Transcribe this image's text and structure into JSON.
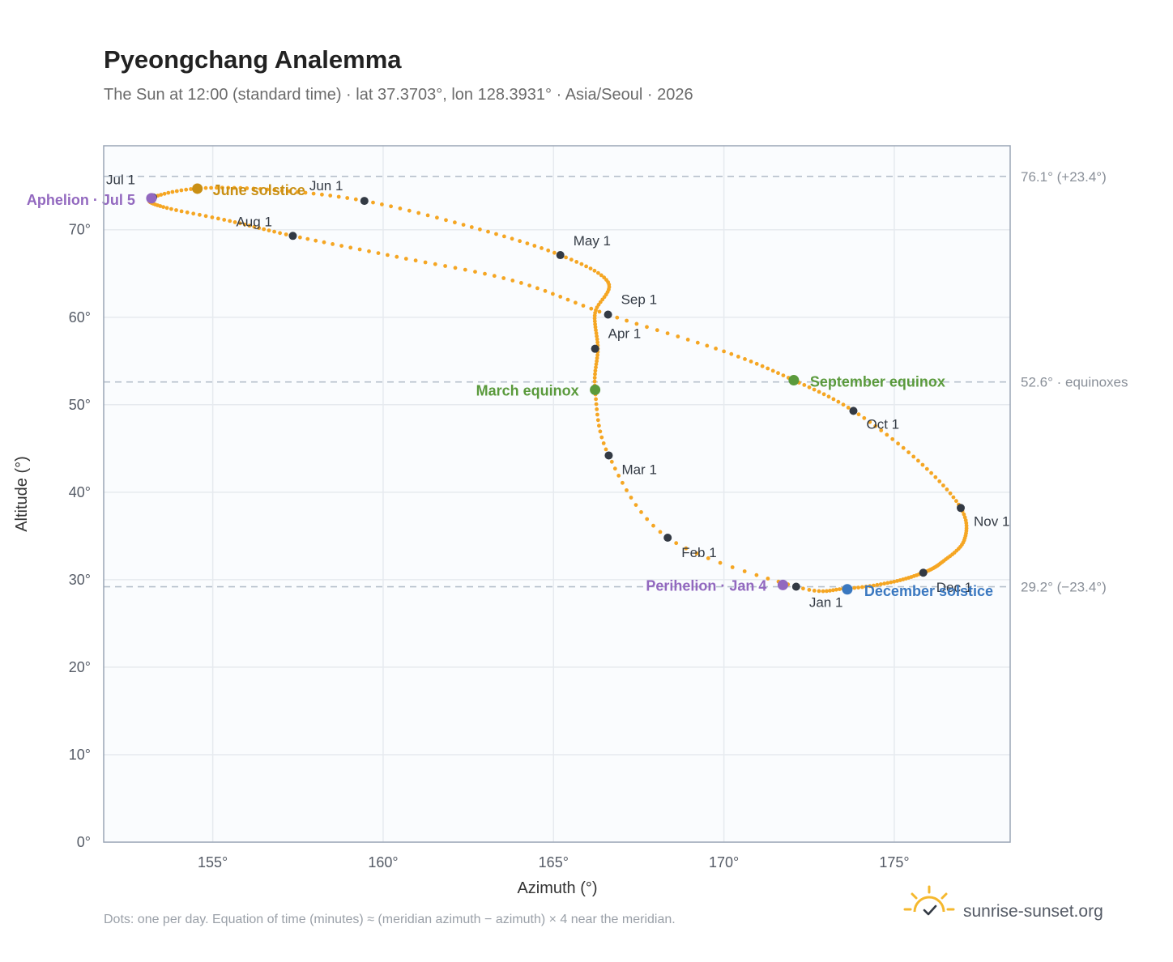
{
  "header": {
    "title": "Pyeongchang Analemma",
    "subtitle": "The Sun at 12:00 (standard time) · lat 37.3703°, lon 128.3931° · Asia/Seoul · 2026"
  },
  "footer": {
    "note": "Dots: one per day. Equation of time (minutes) ≈ (meridian azimuth − azimuth) × 4 near the meridian.",
    "brand": "sunrise-sunset.org",
    "brand_icon": "sun-check-icon"
  },
  "colors": {
    "curve": "#f5a623",
    "month_dot": "#333a44",
    "june_solstice": "#c98f14",
    "december_solstice": "#3a78c0",
    "equinox": "#5a9a3c",
    "apsis": "#9268bf",
    "grid": "#e6eaef",
    "plot_bg": "#fafcfe",
    "frame": "#9aa5b5",
    "ref_line": "#b6c0cc"
  },
  "chart_data": {
    "type": "scatter",
    "title": "Pyeongchang Analemma",
    "xlabel": "Azimuth (°)",
    "ylabel": "Altitude (°)",
    "xlim": [
      151.8,
      178.4
    ],
    "ylim": [
      0,
      79.6
    ],
    "xticks": [
      155,
      160,
      165,
      170,
      175
    ],
    "yticks": [
      0,
      10,
      20,
      30,
      40,
      50,
      60,
      70
    ],
    "tick_suffix": "°",
    "grid": true,
    "reference_lines": [
      {
        "y": 76.1,
        "label": "76.1° (+23.4°)"
      },
      {
        "y": 52.6,
        "label": "52.6° · equinoxes"
      },
      {
        "y": 29.2,
        "label": "29.2° (−23.4°)"
      }
    ],
    "daily_positions": {
      "x": [
        172.12,
        174.07,
        175.62,
        176.55,
        177.0,
        176.95,
        176.3,
        175.0,
        173.32,
        171.38,
        170.1,
        169.46,
        169.0,
        168.35,
        167.67,
        167.08,
        166.55,
        166.3,
        166.2,
        166.26,
        166.29,
        166.45,
        166.9,
        167.8,
        169.5,
        171.8,
        174.5,
        176.3,
        177.0,
        176.6,
        175.85,
        174.7,
        173.5,
        172.3
      ],
      "y": [
        29.2,
        28.8,
        28.9,
        29.4,
        30.4,
        31.6,
        33.4,
        35.6,
        38.2,
        40.9,
        43.7,
        46.8,
        49.2,
        51.5,
        53.9,
        56.2,
        58.5,
        60.3,
        62.7,
        64.9,
        67.2,
        69.4,
        71.4,
        73.1,
        74.6,
        75.6,
        76.0,
        75.6,
        74.9,
        73.4,
        71.0,
        69.1,
        65.2,
        60.3
      ],
      "note_order": "Jan 1 through Sep 1, then Sep 1 back to Dec 1 via Oct-Nov"
    },
    "curve_points": {
      "x": [
        172.12,
        168.35,
        166.62,
        166.22,
        166.3,
        166.22,
        166.6,
        165.2,
        162.6,
        159.45,
        156.6,
        154.5,
        153.2,
        153.55,
        155.5,
        157.35,
        160.4,
        163.8,
        166.6,
        170.0,
        172.05,
        173.8,
        175.7,
        176.95,
        177.05,
        176.4,
        175.85,
        174.9,
        173.6,
        172.12
      ],
      "y": [
        29.2,
        34.8,
        44.2,
        51.7,
        56.4,
        60.5,
        64.0,
        67.1,
        70.3,
        73.3,
        74.6,
        74.7,
        73.6,
        72.6,
        71.0,
        69.3,
        66.9,
        64.2,
        60.3,
        56.1,
        52.8,
        49.3,
        43.6,
        38.2,
        34.5,
        32.0,
        30.8,
        29.7,
        29.0,
        29.2
      ]
    },
    "month_markers": [
      {
        "label": "Jan 1",
        "x": 172.12,
        "y": 29.2
      },
      {
        "label": "Feb 1",
        "x": 168.35,
        "y": 34.8
      },
      {
        "label": "Mar 1",
        "x": 166.62,
        "y": 44.2
      },
      {
        "label": "Apr 1",
        "x": 166.22,
        "y": 56.4
      },
      {
        "label": "May 1",
        "x": 165.2,
        "y": 67.1
      },
      {
        "label": "Jun 1",
        "x": 159.45,
        "y": 73.3
      },
      {
        "label": "Jul 1",
        "x": 153.25,
        "y": 73.7
      },
      {
        "label": "Aug 1",
        "x": 157.35,
        "y": 69.3
      },
      {
        "label": "Sep 1",
        "x": 166.6,
        "y": 60.3
      },
      {
        "label": "Oct 1",
        "x": 173.8,
        "y": 49.3
      },
      {
        "label": "Nov 1",
        "x": 176.95,
        "y": 38.2
      },
      {
        "label": "Dec 1",
        "x": 175.85,
        "y": 30.8
      }
    ],
    "events": [
      {
        "label": "June solstice",
        "x": 154.55,
        "y": 74.7,
        "color": "#c98f14"
      },
      {
        "label": "Aphelion · Jul 5",
        "x": 153.2,
        "y": 73.6,
        "color": "#9268bf"
      },
      {
        "label": "March equinox",
        "x": 166.22,
        "y": 51.7,
        "color": "#5a9a3c"
      },
      {
        "label": "September equinox",
        "x": 172.05,
        "y": 52.8,
        "color": "#5a9a3c"
      },
      {
        "label": "Perihelion · Jan 4",
        "x": 171.73,
        "y": 29.4,
        "color": "#9268bf"
      },
      {
        "label": "December solstice",
        "x": 173.62,
        "y": 28.9,
        "color": "#3a78c0"
      }
    ]
  }
}
